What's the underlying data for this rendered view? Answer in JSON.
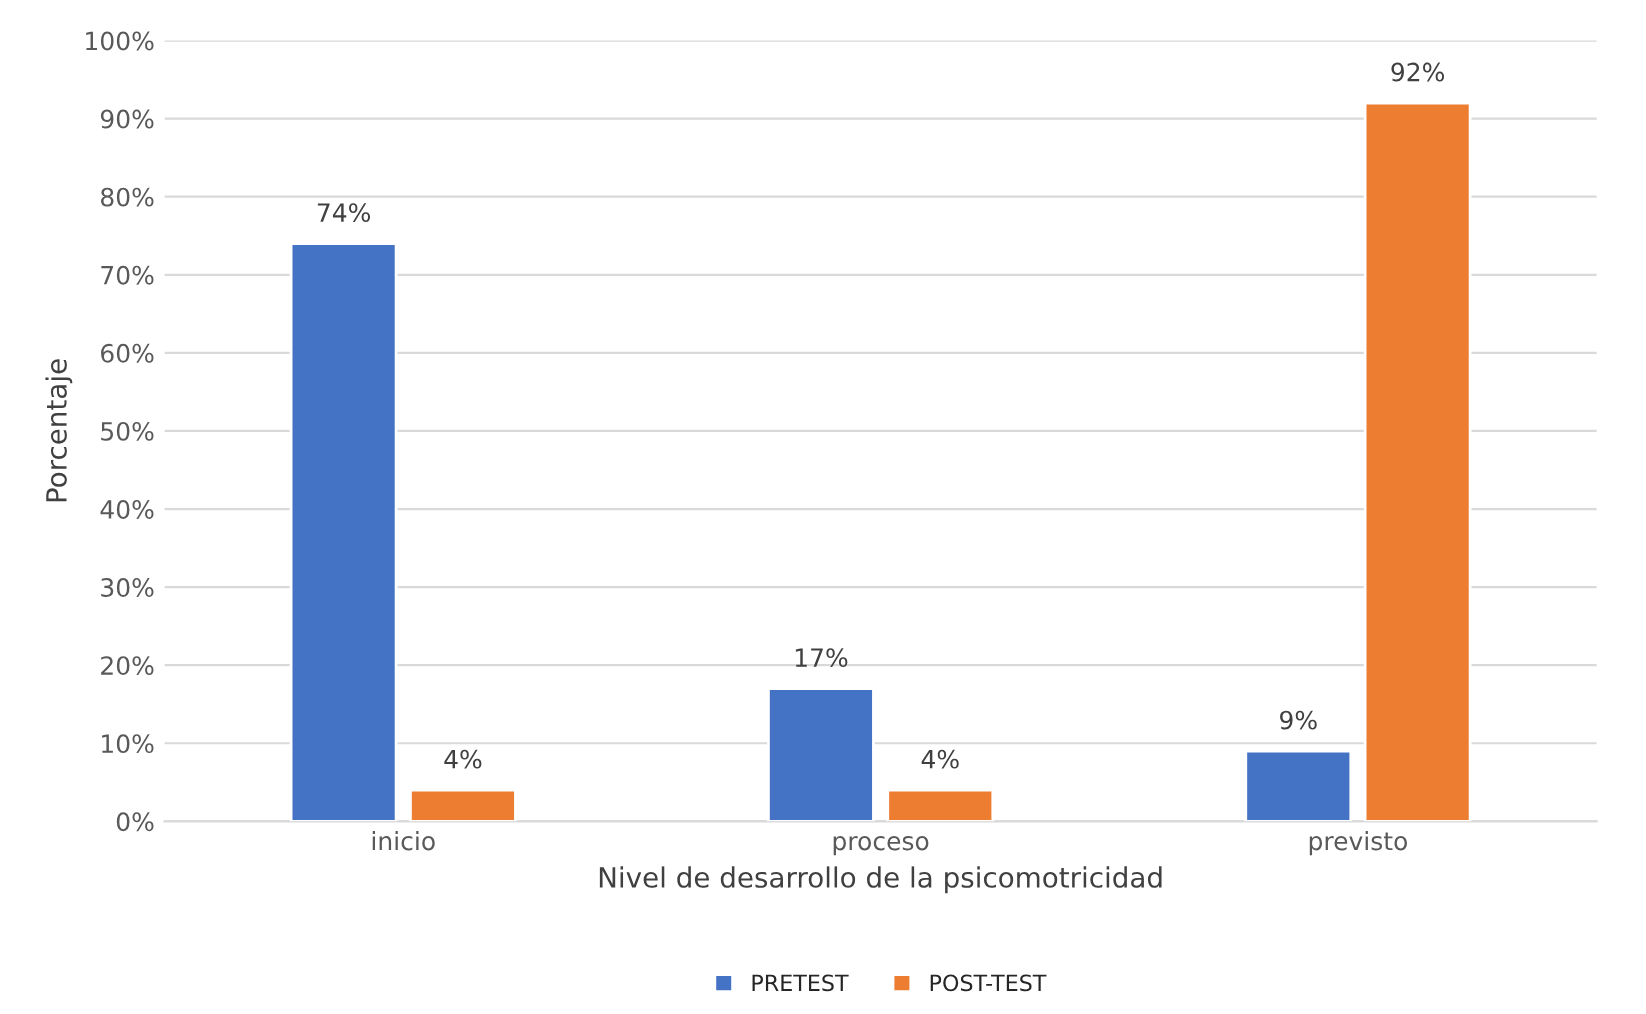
{
  "chart_data": {
    "type": "bar",
    "xlabel": "Nivel de desarrollo de la psicomotricidad",
    "ylabel": "Porcentaje",
    "categories": [
      "inicio",
      "proceso",
      "previsto"
    ],
    "series": [
      {
        "name": "PRETEST",
        "color": "#4472c4",
        "values": [
          74,
          17,
          9
        ],
        "value_labels": [
          "74%",
          "17%",
          "9%"
        ]
      },
      {
        "name": "POST-TEST",
        "color": "#ed7d31",
        "values": [
          4,
          4,
          92
        ],
        "value_labels": [
          "4%",
          "4%",
          "92%"
        ]
      }
    ],
    "ylim": [
      0,
      100
    ],
    "yticks": [
      {
        "value": 0,
        "label": "0%"
      },
      {
        "value": 10,
        "label": "10%"
      },
      {
        "value": 20,
        "label": "20%"
      },
      {
        "value": 30,
        "label": "30%"
      },
      {
        "value": 40,
        "label": "40%"
      },
      {
        "value": 50,
        "label": "50%"
      },
      {
        "value": 60,
        "label": "60%"
      },
      {
        "value": 70,
        "label": "70%"
      },
      {
        "value": 80,
        "label": "80%"
      },
      {
        "value": 90,
        "label": "90%"
      },
      {
        "value": 100,
        "label": "100%"
      }
    ],
    "grid": "y",
    "legend": "bottom"
  }
}
